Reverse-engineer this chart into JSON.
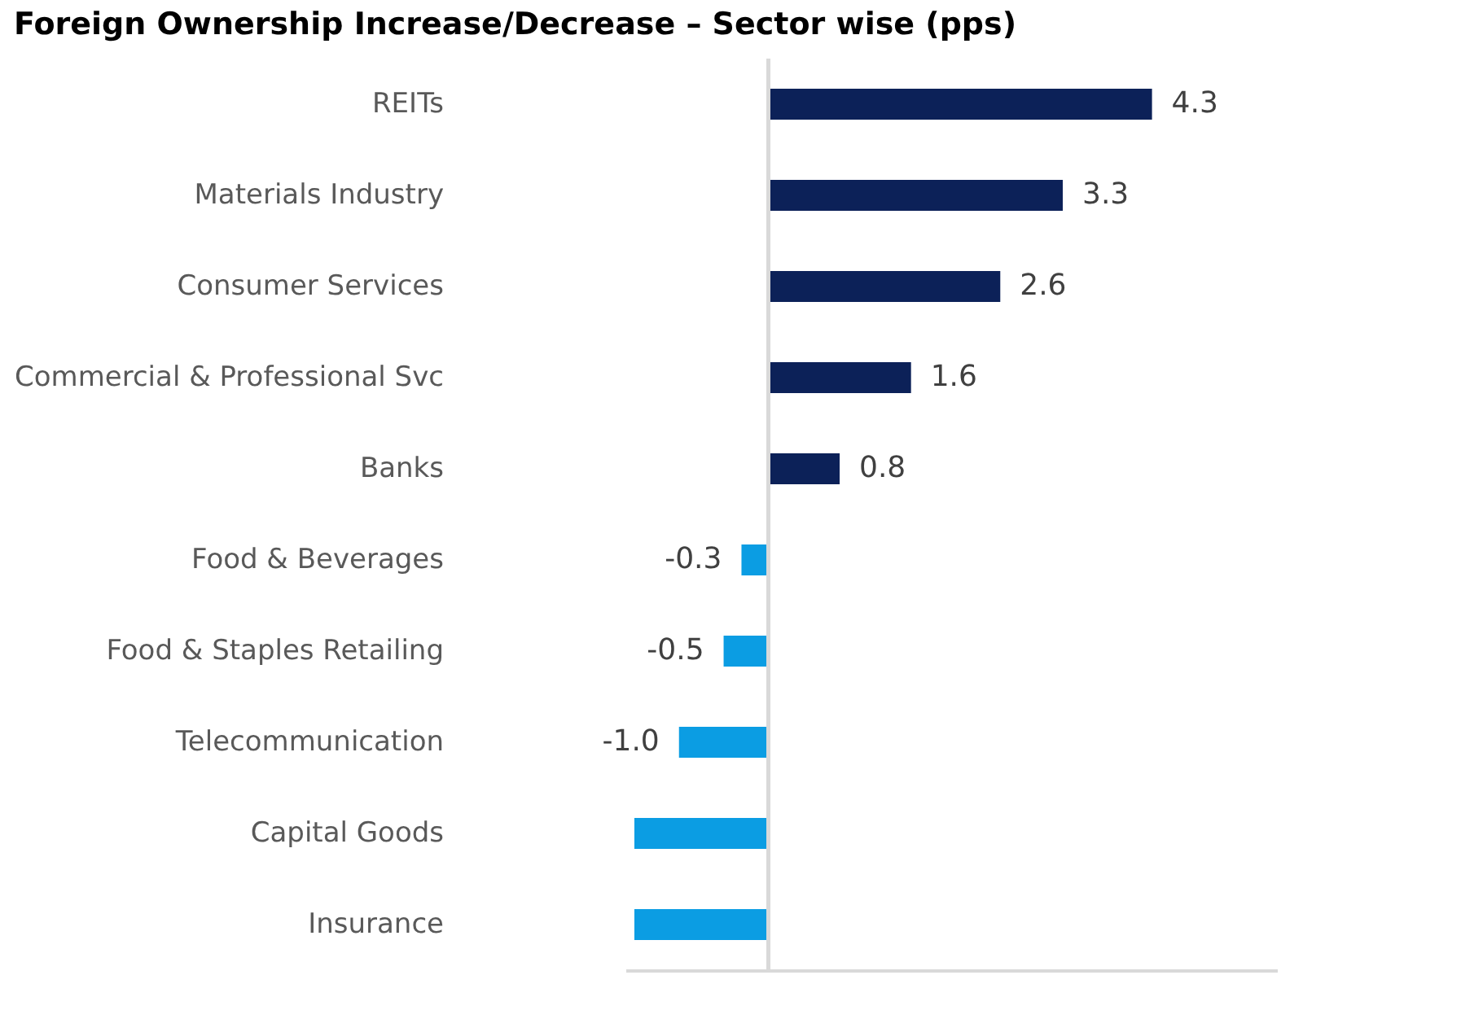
{
  "chart_data": {
    "type": "bar",
    "orientation": "horizontal",
    "title": "Foreign Ownership Increase/Decrease – Sector wise (pps)",
    "categories": [
      "REITs",
      "Materials Industry",
      "Consumer Services",
      "Commercial & Professional Svc",
      "Banks",
      "Food & Beverages",
      "Food & Staples Retailing",
      "Telecommunication",
      "Capital Goods",
      "Insurance"
    ],
    "values": [
      4.3,
      3.3,
      2.6,
      1.6,
      0.8,
      -0.3,
      -0.5,
      -1.0,
      -1.5,
      -1.5
    ],
    "value_labels": [
      "4.3",
      "3.3",
      "2.6",
      "1.6",
      "0.8",
      "-0.3",
      "-0.5",
      "-1.0",
      null,
      null
    ],
    "colors": [
      "#0c2158",
      "#0c2158",
      "#0c2158",
      "#0c2158",
      "#0c2158",
      "#0b9de3",
      "#0b9de3",
      "#0b9de3",
      "#0b9de3",
      "#0b9de3"
    ],
    "xlim": [
      -1.6,
      5.7
    ],
    "tick_labels": "y",
    "grid": false
  }
}
